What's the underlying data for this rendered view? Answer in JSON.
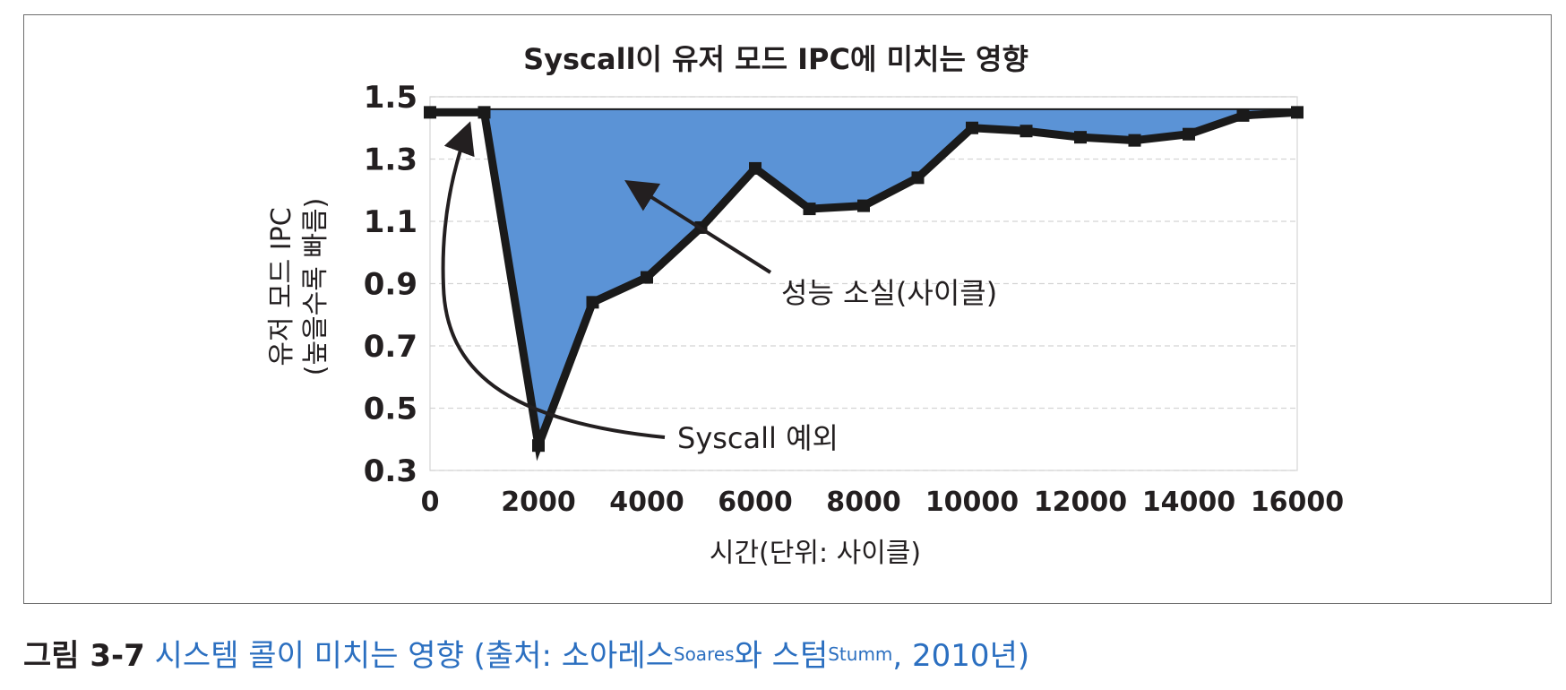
{
  "chart_data": {
    "type": "area",
    "title": "Syscall이 유저 모드 IPC에 미치는 영향",
    "xlabel": "시간(단위: 사이클)",
    "ylabel_line1": "유저 모드 IPC",
    "ylabel_line2": "(높을수록 빠름)",
    "xlim": [
      0,
      16000
    ],
    "ylim": [
      0.3,
      1.5
    ],
    "x_ticks": [
      "0",
      "2000",
      "4000",
      "6000",
      "8000",
      "10000",
      "12000",
      "14000",
      "16000"
    ],
    "y_ticks": [
      "0.3",
      "0.5",
      "0.7",
      "0.9",
      "1.1",
      "1.3",
      "1.5"
    ],
    "grid": true,
    "baseline": 1.46,
    "series": [
      {
        "x": [
          0,
          1000,
          2000,
          3000,
          4000,
          5000,
          6000,
          7000,
          8000,
          9000,
          10000,
          11000,
          12000,
          13000,
          14000,
          15000,
          16000
        ],
        "y": [
          1.45,
          1.45,
          0.38,
          0.84,
          0.92,
          1.08,
          1.27,
          1.14,
          1.15,
          1.24,
          1.4,
          1.39,
          1.37,
          1.36,
          1.38,
          1.44,
          1.45
        ]
      }
    ],
    "annotations": [
      {
        "text": "성능 소실(사이클)",
        "target": [
          3700,
          1.22
        ]
      },
      {
        "text": "Syscall 예외",
        "target": [
          700,
          1.4
        ]
      }
    ],
    "colors": {
      "fill": "#5b93d6",
      "line": "#1a1a1a",
      "grid": "#d4d4d4"
    }
  },
  "caption": {
    "label": "그림 3-7",
    "text1": " 시스템 콜이 미치는 영향 (출처: 소아레스",
    "sup1": "Soares",
    "text2": "와 스텀",
    "sup2": "Stumm",
    "text3": ", 2010년)"
  }
}
